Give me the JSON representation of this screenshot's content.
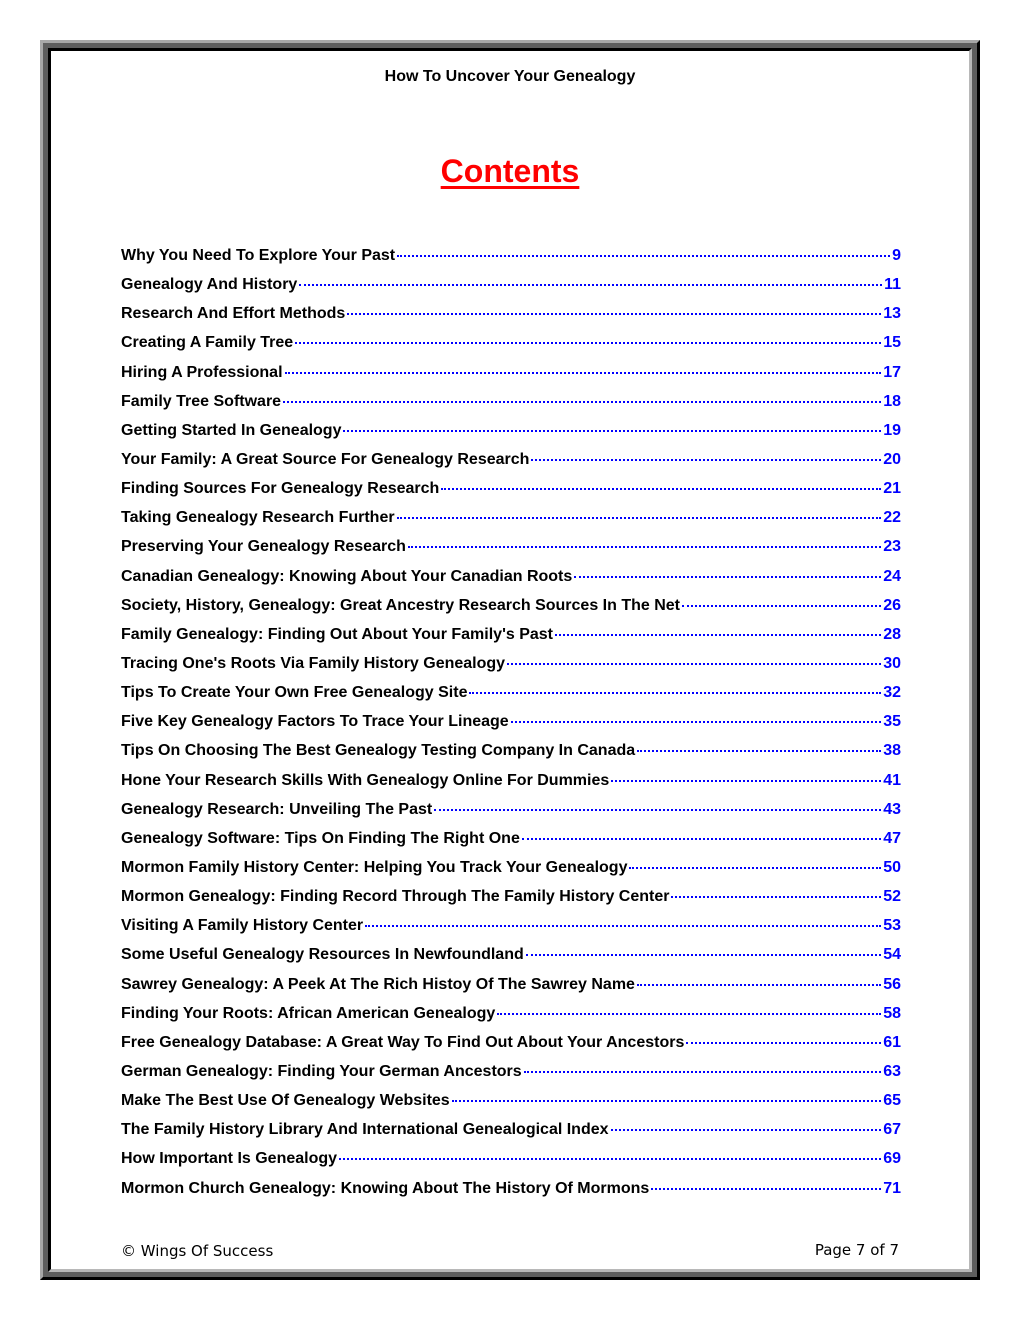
{
  "header": {
    "title": "How To Uncover Your Genealogy"
  },
  "contents_title": "Contents",
  "colors": {
    "heading": "#ff0000",
    "page_numbers": "#0000ff",
    "leaders": "#0000ff"
  },
  "toc": [
    {
      "title": "Why You Need To Explore Your Past",
      "page": "9"
    },
    {
      "title": "Genealogy And History",
      "page": "11"
    },
    {
      "title": "Research And Effort Methods",
      "page": "13"
    },
    {
      "title": "Creating A Family Tree",
      "page": "15"
    },
    {
      "title": "Hiring A Professional",
      "page": "17"
    },
    {
      "title": "Family Tree Software",
      "page": "18"
    },
    {
      "title": "Getting Started In Genealogy",
      "page": "19"
    },
    {
      "title": "Your Family: A Great Source For Genealogy Research",
      "page": "20"
    },
    {
      "title": "Finding Sources For Genealogy Research",
      "page": "21"
    },
    {
      "title": "Taking Genealogy Research Further",
      "page": "22"
    },
    {
      "title": "Preserving Your Genealogy Research",
      "page": "23"
    },
    {
      "title": "Canadian Genealogy: Knowing About Your Canadian Roots",
      "page": "24"
    },
    {
      "title": "Society, History, Genealogy: Great Ancestry Research Sources In The Net",
      "page": "26"
    },
    {
      "title": "Family Genealogy: Finding Out About Your Family's Past",
      "page": "28"
    },
    {
      "title": "Tracing One's Roots Via Family History Genealogy",
      "page": "30"
    },
    {
      "title": "Tips To Create Your Own Free Genealogy Site",
      "page": "32"
    },
    {
      "title": "Five Key Genealogy Factors To Trace Your Lineage",
      "page": "35"
    },
    {
      "title": "Tips On Choosing The Best Genealogy Testing Company In Canada",
      "page": "38"
    },
    {
      "title": "Hone Your Research Skills With Genealogy Online For Dummies",
      "page": "41"
    },
    {
      "title": "Genealogy Research: Unveiling The Past",
      "page": "43"
    },
    {
      "title": "Genealogy Software: Tips On Finding The Right One",
      "page": "47"
    },
    {
      "title": "Mormon Family History Center: Helping You Track Your Genealogy",
      "page": "50"
    },
    {
      "title": "Mormon Genealogy: Finding Record Through The Family History Center",
      "page": "52"
    },
    {
      "title": "Visiting A Family History Center",
      "page": "53"
    },
    {
      "title": "Some Useful Genealogy Resources In Newfoundland",
      "page": "54"
    },
    {
      "title": "Sawrey Genealogy: A Peek At The Rich Histoy Of The Sawrey Name",
      "page": "56"
    },
    {
      "title": "Finding Your Roots: African American Genealogy",
      "page": "58"
    },
    {
      "title": "Free Genealogy Database: A Great Way To Find Out About Your Ancestors",
      "page": "61"
    },
    {
      "title": "German Genealogy: Finding Your German Ancestors",
      "page": "63"
    },
    {
      "title": "Make The Best Use Of Genealogy Websites",
      "page": "65"
    },
    {
      "title": "The Family History Library And International Genealogical Index",
      "page": "67"
    },
    {
      "title": "How Important Is Genealogy",
      "page": "69"
    },
    {
      "title": "Mormon Church Genealogy: Knowing About The History Of Mormons",
      "page": "71"
    }
  ],
  "footer": {
    "copyright": "© Wings Of Success",
    "page_label": "Page 7 of 7"
  }
}
